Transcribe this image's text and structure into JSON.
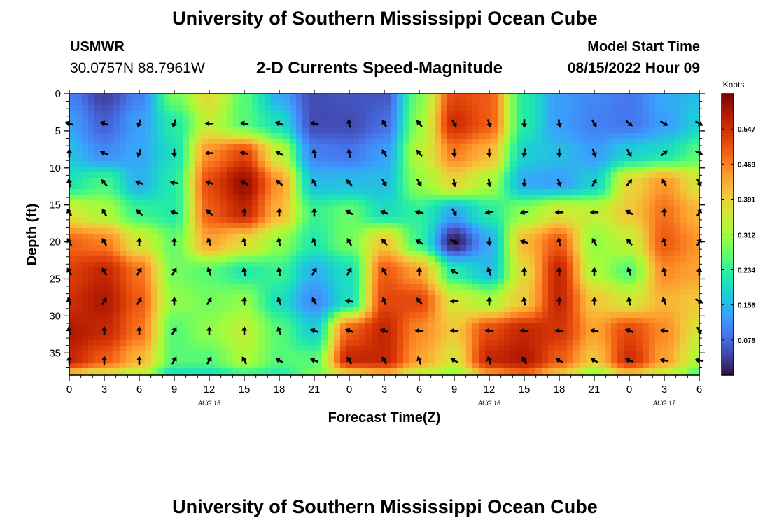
{
  "header": {
    "title": "University of Southern Mississippi Ocean Cube",
    "station_id": "USMWR",
    "coordinates": "30.0757N  88.7961W",
    "subtitle": "2-D Currents Speed-Magnitude",
    "model_start_label": "Model Start Time",
    "model_start_value": "08/15/2022 Hour 09"
  },
  "footer": {
    "repeated_title": "University of Southern Mississippi Ocean Cube"
  },
  "colors": {
    "scale": [
      "#30123b",
      "#4145ab",
      "#4675ed",
      "#39a2fc",
      "#1bcfd4",
      "#24eca6",
      "#61fc6c",
      "#a4fc3b",
      "#d1e834",
      "#f3c63a",
      "#fe9b2d",
      "#f36315",
      "#d93806",
      "#b11901",
      "#7a0403"
    ],
    "arrow": "#000000",
    "frame": "#000000"
  },
  "chart_data": {
    "type": "heatmap",
    "title": "2-D Currents Speed-Magnitude",
    "xlabel": "Forecast Time(Z)",
    "ylabel": "Depth (ft)",
    "x_ticks": [
      0,
      3,
      6,
      9,
      12,
      15,
      18,
      21,
      24,
      27,
      30,
      33,
      36,
      39,
      42,
      45,
      48,
      51,
      54
    ],
    "x_tick_labels": [
      "0",
      "3",
      "6",
      "9",
      "12",
      "15",
      "18",
      "21",
      "0",
      "3",
      "6",
      "9",
      "12",
      "15",
      "18",
      "21",
      "0",
      "3",
      "6"
    ],
    "xlim": [
      0,
      54
    ],
    "y_ticks": [
      0,
      5,
      10,
      15,
      20,
      25,
      30,
      35
    ],
    "y_tick_labels": [
      "0",
      "5",
      "10",
      "15",
      "20",
      "25",
      "30",
      "35"
    ],
    "ylim": [
      0,
      38
    ],
    "y_inverted": true,
    "date_labels": [
      {
        "hour": 12,
        "text": "AUG 15"
      },
      {
        "hour": 36,
        "text": "AUG 16"
      },
      {
        "hour": 51,
        "text": "AUG 17"
      }
    ],
    "colorbar": {
      "title": "Knots",
      "min": 0.0,
      "max": 0.625,
      "tick_values": [
        0.547,
        0.469,
        0.391,
        0.312,
        0.234,
        0.156,
        0.078
      ],
      "tick_labels": [
        "0.547",
        "0.469",
        "0.391",
        "0.312",
        "0.234",
        "0.156",
        "0.078"
      ]
    },
    "speed_grid": {
      "units": "knots",
      "hours": [
        0,
        3,
        6,
        9,
        12,
        15,
        18,
        21,
        24,
        27,
        30,
        33,
        36,
        39,
        42,
        45,
        48,
        51,
        54
      ],
      "depths": [
        0,
        4,
        8,
        12,
        16,
        20,
        24,
        28,
        32,
        36,
        38
      ],
      "values": [
        [
          0.1,
          0.04,
          0.1,
          0.28,
          0.38,
          0.26,
          0.14,
          0.05,
          0.06,
          0.06,
          0.28,
          0.52,
          0.5,
          0.22,
          0.13,
          0.11,
          0.09,
          0.14,
          0.16
        ],
        [
          0.13,
          0.07,
          0.13,
          0.22,
          0.34,
          0.26,
          0.2,
          0.05,
          0.05,
          0.08,
          0.3,
          0.55,
          0.5,
          0.22,
          0.13,
          0.1,
          0.09,
          0.13,
          0.18
        ],
        [
          0.16,
          0.11,
          0.14,
          0.2,
          0.46,
          0.52,
          0.34,
          0.1,
          0.09,
          0.13,
          0.33,
          0.47,
          0.42,
          0.18,
          0.16,
          0.13,
          0.18,
          0.2,
          0.26
        ],
        [
          0.21,
          0.25,
          0.15,
          0.22,
          0.52,
          0.6,
          0.45,
          0.16,
          0.16,
          0.16,
          0.3,
          0.38,
          0.32,
          0.14,
          0.13,
          0.18,
          0.38,
          0.45,
          0.36
        ],
        [
          0.36,
          0.32,
          0.24,
          0.22,
          0.5,
          0.56,
          0.42,
          0.24,
          0.27,
          0.2,
          0.23,
          0.14,
          0.22,
          0.3,
          0.36,
          0.34,
          0.4,
          0.48,
          0.42
        ],
        [
          0.49,
          0.47,
          0.36,
          0.27,
          0.44,
          0.38,
          0.3,
          0.22,
          0.28,
          0.4,
          0.24,
          0.01,
          0.14,
          0.42,
          0.5,
          0.3,
          0.34,
          0.5,
          0.45
        ],
        [
          0.53,
          0.56,
          0.48,
          0.28,
          0.26,
          0.22,
          0.24,
          0.15,
          0.2,
          0.5,
          0.44,
          0.22,
          0.16,
          0.38,
          0.56,
          0.32,
          0.26,
          0.46,
          0.44
        ],
        [
          0.55,
          0.58,
          0.5,
          0.3,
          0.28,
          0.3,
          0.2,
          0.11,
          0.2,
          0.52,
          0.52,
          0.36,
          0.32,
          0.4,
          0.56,
          0.4,
          0.36,
          0.42,
          0.4
        ],
        [
          0.58,
          0.56,
          0.48,
          0.26,
          0.3,
          0.34,
          0.26,
          0.18,
          0.5,
          0.56,
          0.46,
          0.4,
          0.52,
          0.56,
          0.54,
          0.44,
          0.52,
          0.46,
          0.36
        ],
        [
          0.56,
          0.5,
          0.42,
          0.26,
          0.26,
          0.32,
          0.26,
          0.26,
          0.56,
          0.56,
          0.44,
          0.36,
          0.56,
          0.58,
          0.5,
          0.4,
          0.55,
          0.44,
          0.32
        ],
        [
          0.4,
          0.36,
          0.34,
          0.2,
          0.2,
          0.24,
          0.22,
          0.28,
          0.38,
          0.42,
          0.34,
          0.3,
          0.44,
          0.48,
          0.4,
          0.3,
          0.4,
          0.34,
          0.26
        ]
      ]
    },
    "vector_field": {
      "description": "Current direction arrows (math angle in degrees, 0 = east, 90 = up on chart)",
      "hours": [
        0,
        3,
        6,
        9,
        12,
        15,
        18,
        21,
        24,
        27,
        30,
        33,
        36,
        39,
        42,
        45,
        48,
        51,
        54
      ],
      "depths": [
        4,
        8,
        12,
        16,
        20,
        24,
        28,
        32,
        36
      ],
      "angle_deg": [
        [
          160,
          160,
          250,
          250,
          180,
          170,
          160,
          170,
          100,
          120,
          130,
          300,
          290,
          270,
          280,
          300,
          320,
          330,
          330
        ],
        [
          90,
          160,
          250,
          270,
          180,
          170,
          150,
          100,
          100,
          120,
          130,
          270,
          270,
          260,
          270,
          290,
          300,
          40,
          330
        ],
        [
          100,
          130,
          160,
          170,
          160,
          150,
          140,
          120,
          130,
          300,
          300,
          280,
          280,
          270,
          290,
          60,
          50,
          120,
          300
        ],
        [
          120,
          120,
          140,
          160,
          140,
          90,
          90,
          90,
          150,
          160,
          170,
          300,
          190,
          190,
          180,
          180,
          150,
          90,
          60
        ],
        [
          120,
          120,
          90,
          90,
          110,
          100,
          100,
          110,
          120,
          130,
          150,
          330,
          270,
          160,
          100,
          120,
          130,
          100,
          60
        ],
        [
          120,
          120,
          60,
          60,
          110,
          100,
          100,
          60,
          60,
          120,
          90,
          150,
          110,
          90,
          90,
          90,
          110,
          100,
          90
        ],
        [
          110,
          60,
          60,
          90,
          60,
          90,
          110,
          120,
          170,
          110,
          130,
          180,
          90,
          100,
          90,
          90,
          100,
          110,
          330
        ],
        [
          100,
          90,
          90,
          60,
          90,
          90,
          110,
          160,
          160,
          160,
          180,
          180,
          180,
          180,
          180,
          170,
          160,
          170,
          300
        ],
        [
          90,
          90,
          90,
          60,
          60,
          120,
          150,
          160,
          120,
          120,
          110,
          150,
          110,
          120,
          150,
          150,
          160,
          170,
          170
        ]
      ]
    }
  }
}
